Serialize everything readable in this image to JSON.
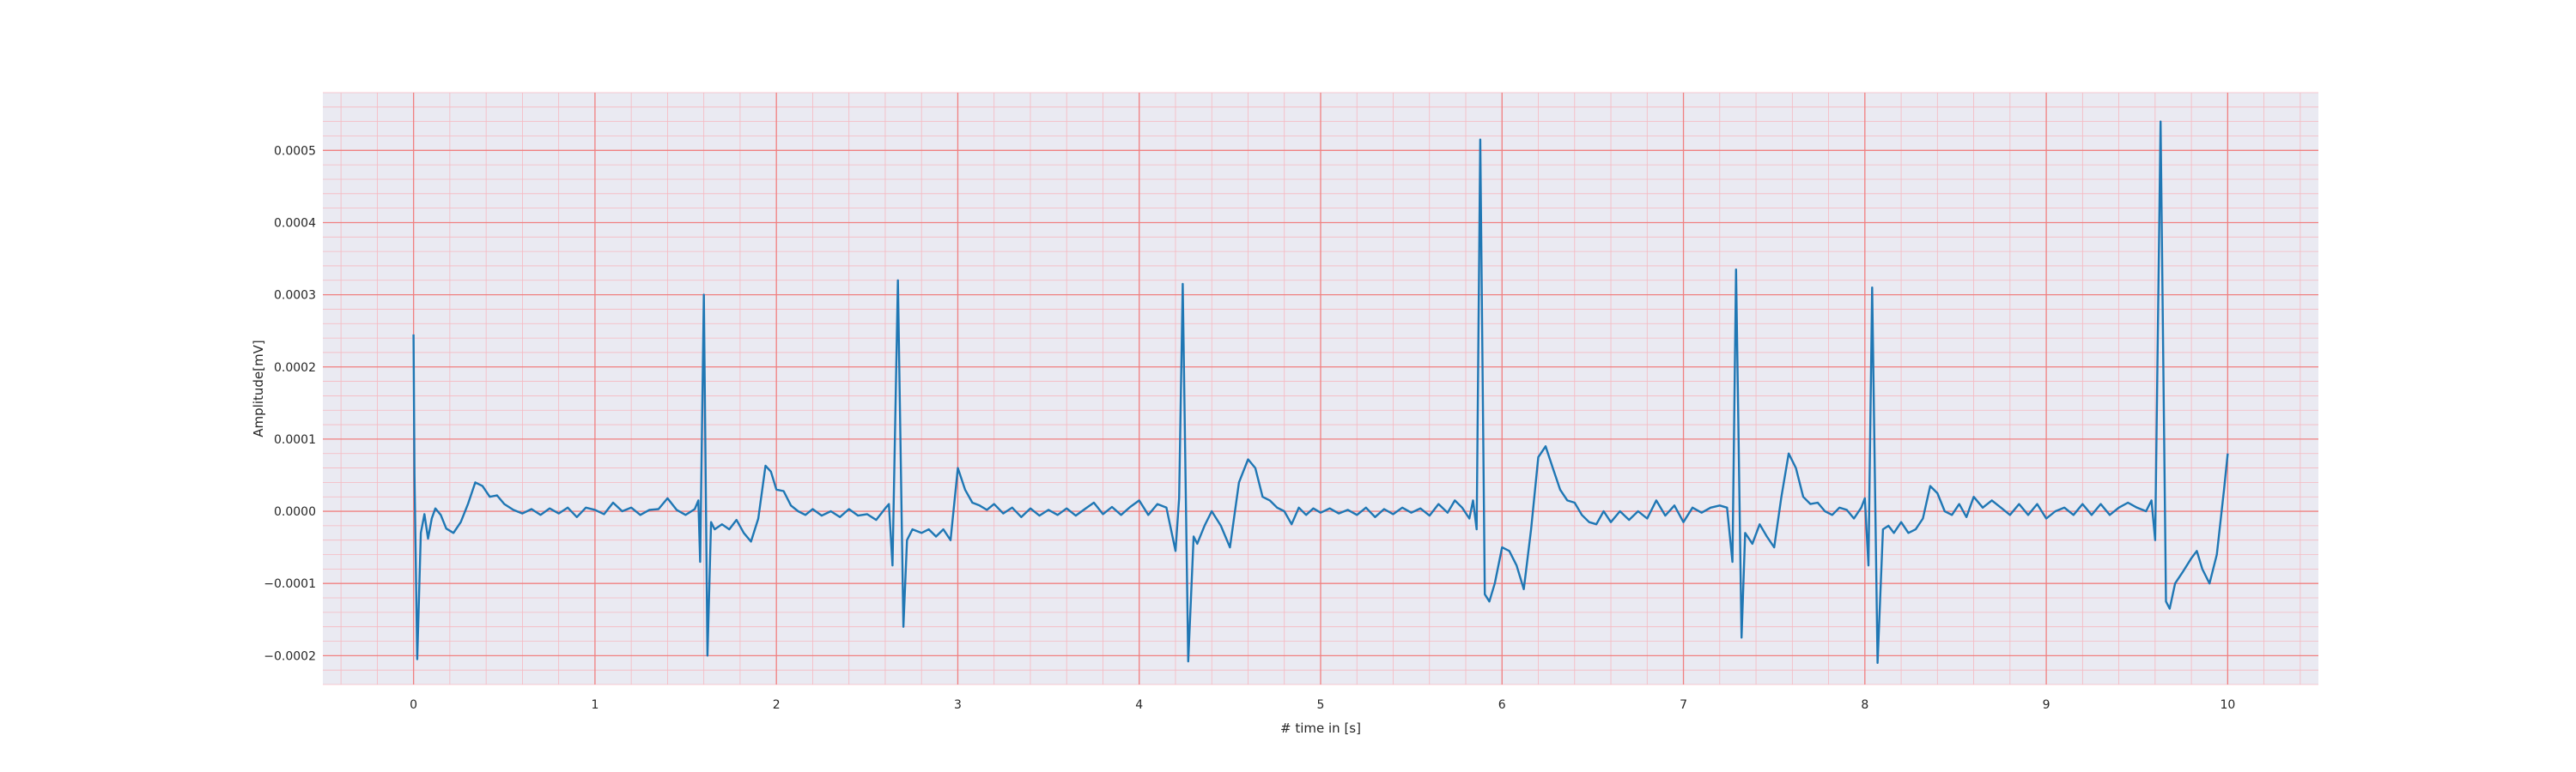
{
  "chart_data": {
    "type": "line",
    "title": "",
    "xlabel": "# time in [s]",
    "ylabel": "Amplitude[mV]",
    "xlim": [
      -0.5,
      10.5
    ],
    "ylim": [
      -0.00024,
      0.00058
    ],
    "x_ticks": [
      0,
      1,
      2,
      3,
      4,
      5,
      6,
      7,
      8,
      9,
      10
    ],
    "x_tick_labels": [
      "0",
      "1",
      "2",
      "3",
      "4",
      "5",
      "6",
      "7",
      "8",
      "9",
      "10"
    ],
    "y_ticks": [
      -0.0002,
      -0.0001,
      0.0,
      0.0001,
      0.0002,
      0.0003,
      0.0004,
      0.0005
    ],
    "y_tick_labels": [
      "−0.0002",
      "−0.0001",
      "0.0000",
      "0.0001",
      "0.0002",
      "0.0003",
      "0.0004",
      "0.0005"
    ],
    "grid": "ecg paper: major red grid lines, minor pink grid lines",
    "colors": {
      "line": "#1f77b4",
      "plot_background": "#eaeaf2",
      "major_grid": "#f08080",
      "minor_grid": "#f6b8c0"
    },
    "series": [
      {
        "name": "",
        "points": [
          [
            0.0,
            0.000245
          ],
          [
            0.005,
            5e-05
          ],
          [
            0.02,
            -0.000205
          ],
          [
            0.04,
            -3e-05
          ],
          [
            0.06,
            -4e-06
          ],
          [
            0.08,
            -3.8e-05
          ],
          [
            0.1,
            -1e-05
          ],
          [
            0.12,
            4e-06
          ],
          [
            0.15,
            -5e-06
          ],
          [
            0.18,
            -2.4e-05
          ],
          [
            0.22,
            -3e-05
          ],
          [
            0.26,
            -1.5e-05
          ],
          [
            0.3,
            1e-05
          ],
          [
            0.34,
            4e-05
          ],
          [
            0.38,
            3.5e-05
          ],
          [
            0.42,
            2e-05
          ],
          [
            0.46,
            2.2e-05
          ],
          [
            0.5,
            1e-05
          ],
          [
            0.55,
            2e-06
          ],
          [
            0.6,
            -3e-06
          ],
          [
            0.65,
            3e-06
          ],
          [
            0.7,
            -5e-06
          ],
          [
            0.75,
            4e-06
          ],
          [
            0.8,
            -3e-06
          ],
          [
            0.85,
            5e-06
          ],
          [
            0.9,
            -8e-06
          ],
          [
            0.95,
            5e-06
          ],
          [
            1.0,
            2e-06
          ],
          [
            1.05,
            -4e-06
          ],
          [
            1.1,
            1.2e-05
          ],
          [
            1.15,
            0.0
          ],
          [
            1.2,
            5e-06
          ],
          [
            1.25,
            -5e-06
          ],
          [
            1.3,
            2e-06
          ],
          [
            1.35,
            3e-06
          ],
          [
            1.4,
            1.8e-05
          ],
          [
            1.45,
            2e-06
          ],
          [
            1.5,
            -5e-06
          ],
          [
            1.55,
            3e-06
          ],
          [
            1.57,
            1.5e-05
          ],
          [
            1.58,
            -7e-05
          ],
          [
            1.6,
            0.0003
          ],
          [
            1.62,
            -0.0002
          ],
          [
            1.64,
            -1.5e-05
          ],
          [
            1.66,
            -2.5e-05
          ],
          [
            1.7,
            -1.8e-05
          ],
          [
            1.74,
            -2.5e-05
          ],
          [
            1.78,
            -1.2e-05
          ],
          [
            1.82,
            -3e-05
          ],
          [
            1.86,
            -4.2e-05
          ],
          [
            1.9,
            -1e-05
          ],
          [
            1.94,
            6.3e-05
          ],
          [
            1.97,
            5.5e-05
          ],
          [
            2.0,
            3e-05
          ],
          [
            2.04,
            2.8e-05
          ],
          [
            2.08,
            8e-06
          ],
          [
            2.12,
            0.0
          ],
          [
            2.16,
            -5e-06
          ],
          [
            2.2,
            3e-06
          ],
          [
            2.25,
            -6e-06
          ],
          [
            2.3,
            0.0
          ],
          [
            2.35,
            -8e-06
          ],
          [
            2.4,
            3e-06
          ],
          [
            2.45,
            -6e-06
          ],
          [
            2.5,
            -4e-06
          ],
          [
            2.55,
            -1.2e-05
          ],
          [
            2.6,
            4e-06
          ],
          [
            2.62,
            1e-05
          ],
          [
            2.64,
            -7.5e-05
          ],
          [
            2.67,
            0.00032
          ],
          [
            2.7,
            -0.00016
          ],
          [
            2.72,
            -4e-05
          ],
          [
            2.75,
            -2.5e-05
          ],
          [
            2.8,
            -3e-05
          ],
          [
            2.84,
            -2.5e-05
          ],
          [
            2.88,
            -3.5e-05
          ],
          [
            2.92,
            -2.5e-05
          ],
          [
            2.96,
            -4e-05
          ],
          [
            3.0,
            6e-05
          ],
          [
            3.04,
            3e-05
          ],
          [
            3.08,
            1.2e-05
          ],
          [
            3.12,
            8e-06
          ],
          [
            3.16,
            2e-06
          ],
          [
            3.2,
            1e-05
          ],
          [
            3.25,
            -3e-06
          ],
          [
            3.3,
            5e-06
          ],
          [
            3.35,
            -8e-06
          ],
          [
            3.4,
            4e-06
          ],
          [
            3.45,
            -6e-06
          ],
          [
            3.5,
            2e-06
          ],
          [
            3.55,
            -5e-06
          ],
          [
            3.6,
            4e-06
          ],
          [
            3.65,
            -6e-06
          ],
          [
            3.7,
            3e-06
          ],
          [
            3.75,
            1.2e-05
          ],
          [
            3.8,
            -4e-06
          ],
          [
            3.85,
            6e-06
          ],
          [
            3.9,
            -5e-06
          ],
          [
            3.95,
            6e-06
          ],
          [
            4.0,
            1.5e-05
          ],
          [
            4.05,
            -5e-06
          ],
          [
            4.1,
            1e-05
          ],
          [
            4.15,
            5e-06
          ],
          [
            4.2,
            -5.5e-05
          ],
          [
            4.22,
            1.8e-05
          ],
          [
            4.24,
            0.000315
          ],
          [
            4.27,
            -0.000208
          ],
          [
            4.3,
            -3.5e-05
          ],
          [
            4.32,
            -4.5e-05
          ],
          [
            4.36,
            -2e-05
          ],
          [
            4.4,
            0.0
          ],
          [
            4.45,
            -2e-05
          ],
          [
            4.5,
            -5e-05
          ],
          [
            4.55,
            4e-05
          ],
          [
            4.6,
            7.2e-05
          ],
          [
            4.64,
            6e-05
          ],
          [
            4.68,
            2e-05
          ],
          [
            4.72,
            1.5e-05
          ],
          [
            4.76,
            5e-06
          ],
          [
            4.8,
            0.0
          ],
          [
            4.84,
            -1.8e-05
          ],
          [
            4.88,
            5e-06
          ],
          [
            4.92,
            -5e-06
          ],
          [
            4.96,
            4e-06
          ],
          [
            5.0,
            -2e-06
          ],
          [
            5.05,
            4e-06
          ],
          [
            5.1,
            -3e-06
          ],
          [
            5.15,
            2e-06
          ],
          [
            5.2,
            -5e-06
          ],
          [
            5.25,
            5e-06
          ],
          [
            5.3,
            -8e-06
          ],
          [
            5.35,
            3e-06
          ],
          [
            5.4,
            -4e-06
          ],
          [
            5.45,
            5e-06
          ],
          [
            5.5,
            -2e-06
          ],
          [
            5.55,
            4e-06
          ],
          [
            5.6,
            -6e-06
          ],
          [
            5.65,
            1e-05
          ],
          [
            5.7,
            -2e-06
          ],
          [
            5.74,
            1.5e-05
          ],
          [
            5.78,
            5e-06
          ],
          [
            5.82,
            -1e-05
          ],
          [
            5.84,
            1.5e-05
          ],
          [
            5.86,
            -2.5e-05
          ],
          [
            5.88,
            0.000515
          ],
          [
            5.905,
            -0.000115
          ],
          [
            5.93,
            -0.000125
          ],
          [
            5.96,
            -0.0001
          ],
          [
            6.0,
            -5e-05
          ],
          [
            6.04,
            -5.5e-05
          ],
          [
            6.08,
            -7.5e-05
          ],
          [
            6.12,
            -0.000108
          ],
          [
            6.16,
            -2.5e-05
          ],
          [
            6.2,
            7.5e-05
          ],
          [
            6.24,
            9e-05
          ],
          [
            6.28,
            6e-05
          ],
          [
            6.32,
            3e-05
          ],
          [
            6.36,
            1.5e-05
          ],
          [
            6.4,
            1.2e-05
          ],
          [
            6.44,
            -5e-06
          ],
          [
            6.48,
            -1.5e-05
          ],
          [
            6.52,
            -1.8e-05
          ],
          [
            6.56,
            0.0
          ],
          [
            6.6,
            -1.5e-05
          ],
          [
            6.65,
            0.0
          ],
          [
            6.7,
            -1.2e-05
          ],
          [
            6.75,
            0.0
          ],
          [
            6.8,
            -1e-05
          ],
          [
            6.85,
            1.5e-05
          ],
          [
            6.9,
            -6e-06
          ],
          [
            6.95,
            8e-06
          ],
          [
            7.0,
            -1.5e-05
          ],
          [
            7.05,
            5e-06
          ],
          [
            7.1,
            -2e-06
          ],
          [
            7.15,
            5e-06
          ],
          [
            7.2,
            8e-06
          ],
          [
            7.24,
            5e-06
          ],
          [
            7.27,
            -7e-05
          ],
          [
            7.29,
            0.000335
          ],
          [
            7.32,
            -0.000175
          ],
          [
            7.34,
            -3e-05
          ],
          [
            7.38,
            -4.5e-05
          ],
          [
            7.42,
            -1.8e-05
          ],
          [
            7.46,
            -3.5e-05
          ],
          [
            7.5,
            -5e-05
          ],
          [
            7.54,
            2e-05
          ],
          [
            7.58,
            8e-05
          ],
          [
            7.62,
            6e-05
          ],
          [
            7.66,
            2e-05
          ],
          [
            7.7,
            1e-05
          ],
          [
            7.74,
            1.2e-05
          ],
          [
            7.78,
            0.0
          ],
          [
            7.82,
            -5e-06
          ],
          [
            7.86,
            5e-06
          ],
          [
            7.9,
            2e-06
          ],
          [
            7.94,
            -1e-05
          ],
          [
            7.98,
            5e-06
          ],
          [
            8.0,
            1.8e-05
          ],
          [
            8.02,
            -7.5e-05
          ],
          [
            8.04,
            0.00031
          ],
          [
            8.07,
            -0.00021
          ],
          [
            8.1,
            -2.5e-05
          ],
          [
            8.13,
            -2e-05
          ],
          [
            8.16,
            -3e-05
          ],
          [
            8.2,
            -1.5e-05
          ],
          [
            8.24,
            -3e-05
          ],
          [
            8.28,
            -2.5e-05
          ],
          [
            8.32,
            -1e-05
          ],
          [
            8.36,
            3.5e-05
          ],
          [
            8.4,
            2.5e-05
          ],
          [
            8.44,
            0.0
          ],
          [
            8.48,
            -5e-06
          ],
          [
            8.52,
            1e-05
          ],
          [
            8.56,
            -8e-06
          ],
          [
            8.6,
            2e-05
          ],
          [
            8.65,
            5e-06
          ],
          [
            8.7,
            1.5e-05
          ],
          [
            8.75,
            5e-06
          ],
          [
            8.8,
            -5e-06
          ],
          [
            8.85,
            1e-05
          ],
          [
            8.9,
            -5e-06
          ],
          [
            8.95,
            1e-05
          ],
          [
            9.0,
            -1e-05
          ],
          [
            9.05,
            0.0
          ],
          [
            9.1,
            5e-06
          ],
          [
            9.15,
            -5e-06
          ],
          [
            9.2,
            1e-05
          ],
          [
            9.25,
            -5e-06
          ],
          [
            9.3,
            1e-05
          ],
          [
            9.35,
            -5e-06
          ],
          [
            9.4,
            5e-06
          ],
          [
            9.45,
            1.2e-05
          ],
          [
            9.5,
            5e-06
          ],
          [
            9.55,
            0.0
          ],
          [
            9.58,
            1.5e-05
          ],
          [
            9.6,
            -4e-05
          ],
          [
            9.63,
            0.00054
          ],
          [
            9.66,
            -0.000125
          ],
          [
            9.68,
            -0.000135
          ],
          [
            9.71,
            -0.0001
          ],
          [
            9.75,
            -8.5e-05
          ],
          [
            9.8,
            -6.5e-05
          ],
          [
            9.83,
            -5.5e-05
          ],
          [
            9.86,
            -8e-05
          ],
          [
            9.9,
            -0.0001
          ],
          [
            9.94,
            -6e-05
          ],
          [
            9.98,
            3e-05
          ],
          [
            10.0,
            8e-05
          ]
        ]
      }
    ]
  }
}
